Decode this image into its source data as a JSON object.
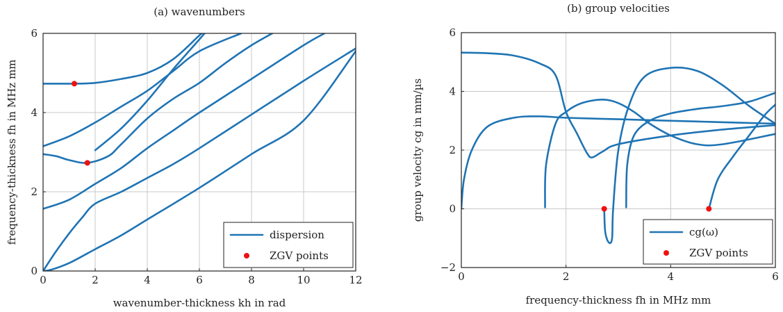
{
  "chart_data": [
    {
      "type": "line",
      "title": "(a) wavenumbers",
      "xlabel": "wavenumber-thickness kh in rad",
      "ylabel": "frequency-thickness fh in MHz mm",
      "xlim": [
        0,
        12
      ],
      "ylim": [
        0,
        6
      ],
      "xticks": [
        "0",
        "2",
        "4",
        "6",
        "8",
        "10",
        "12"
      ],
      "yticks": [
        "0",
        "2",
        "4",
        "6"
      ],
      "grid": true,
      "legend": {
        "placement": "bottom-right",
        "entries": [
          "dispersion",
          "ZGV points"
        ]
      },
      "series": [
        {
          "name": "dispersion",
          "kind": "line",
          "curves": [
            [
              [
                0,
                0
              ],
              [
                0.3,
                0.03
              ],
              [
                1,
                0.2
              ],
              [
                2,
                0.55
              ],
              [
                3,
                0.9
              ],
              [
                4,
                1.3
              ],
              [
                6,
                2.1
              ],
              [
                8,
                2.95
              ],
              [
                10,
                3.8
              ],
              [
                12,
                5.55
              ]
            ],
            [
              [
                0,
                0
              ],
              [
                0.5,
                0.5
              ],
              [
                1,
                0.95
              ],
              [
                1.5,
                1.35
              ],
              [
                2,
                1.7
              ],
              [
                3,
                2.0
              ],
              [
                4,
                2.35
              ],
              [
                5,
                2.7
              ],
              [
                6,
                3.1
              ],
              [
                8,
                3.95
              ],
              [
                10,
                4.8
              ],
              [
                12,
                5.62
              ]
            ],
            [
              [
                0,
                1.57
              ],
              [
                1,
                1.8
              ],
              [
                2,
                2.2
              ],
              [
                3,
                2.6
              ],
              [
                4,
                3.1
              ],
              [
                5,
                3.55
              ],
              [
                6,
                4.0
              ],
              [
                8,
                4.85
              ],
              [
                10,
                5.7
              ],
              [
                10.8,
                6.0
              ]
            ],
            [
              [
                0,
                2.95
              ],
              [
                0.5,
                2.9
              ],
              [
                1,
                2.8
              ],
              [
                1.7,
                2.73
              ],
              [
                2.5,
                2.9
              ],
              [
                3,
                3.2
              ],
              [
                4,
                3.85
              ],
              [
                5,
                4.35
              ],
              [
                6,
                4.75
              ],
              [
                7,
                5.25
              ],
              [
                8,
                5.7
              ],
              [
                8.8,
                6.0
              ]
            ],
            [
              [
                0,
                3.15
              ],
              [
                1,
                3.4
              ],
              [
                2,
                3.75
              ],
              [
                3,
                4.15
              ],
              [
                4,
                4.55
              ],
              [
                5,
                5.05
              ],
              [
                6,
                5.55
              ],
              [
                7.6,
                6.0
              ]
            ],
            [
              [
                0,
                4.73
              ],
              [
                1,
                4.73
              ],
              [
                1.2,
                4.73
              ],
              [
                2,
                4.75
              ],
              [
                3,
                4.85
              ],
              [
                4,
                5.0
              ],
              [
                5,
                5.35
              ],
              [
                6,
                5.95
              ],
              [
                6.1,
                6.0
              ]
            ],
            [
              [
                2.0,
                3.05
              ],
              [
                3,
                3.6
              ],
              [
                4,
                4.3
              ],
              [
                5,
                5.1
              ],
              [
                6,
                5.85
              ],
              [
                6.2,
                6.0
              ]
            ]
          ]
        },
        {
          "name": "ZGV points",
          "kind": "points",
          "points": [
            [
              1.2,
              4.73
            ],
            [
              1.7,
              2.73
            ]
          ]
        }
      ]
    },
    {
      "type": "line",
      "title": "(b) group velocities",
      "xlabel": "frequency-thickness fh in MHz mm",
      "ylabel": "group velocity c_g in mm/µs",
      "xlim": [
        0,
        6
      ],
      "ylim": [
        -2,
        6
      ],
      "xticks": [
        "0",
        "2",
        "4",
        "6"
      ],
      "yticks": [
        "−2",
        "0",
        "2",
        "4",
        "6"
      ],
      "grid": true,
      "legend": {
        "placement": "bottom-right",
        "entries": [
          "c_g(ω)",
          "ZGV points"
        ]
      },
      "series": [
        {
          "name": "c_g(ω)",
          "kind": "line",
          "curves": [
            [
              [
                0,
                5.32
              ],
              [
                0.5,
                5.3
              ],
              [
                1,
                5.22
              ],
              [
                1.5,
                4.95
              ],
              [
                1.8,
                4.55
              ],
              [
                2.0,
                3.3
              ],
              [
                2.2,
                2.6
              ],
              [
                2.4,
                1.9
              ],
              [
                2.5,
                1.75
              ],
              [
                2.7,
                1.95
              ],
              [
                3,
                2.2
              ],
              [
                4,
                2.5
              ],
              [
                5,
                2.7
              ],
              [
                6,
                2.85
              ]
            ],
            [
              [
                0,
                0
              ],
              [
                0.05,
                1.0
              ],
              [
                0.2,
                2.0
              ],
              [
                0.5,
                2.8
              ],
              [
                1,
                3.1
              ],
              [
                1.5,
                3.15
              ],
              [
                2,
                3.1
              ],
              [
                3,
                3.05
              ],
              [
                4,
                3.0
              ],
              [
                5,
                2.95
              ],
              [
                6,
                2.9
              ]
            ],
            [
              [
                1.6,
                0.05
              ],
              [
                1.62,
                1.5
              ],
              [
                1.8,
                2.9
              ],
              [
                2,
                3.3
              ],
              [
                2.3,
                3.6
              ],
              [
                2.7,
                3.72
              ],
              [
                3,
                3.6
              ],
              [
                3.3,
                3.3
              ],
              [
                3.6,
                2.9
              ],
              [
                4,
                2.5
              ],
              [
                4.5,
                2.2
              ],
              [
                5,
                2.2
              ],
              [
                6,
                2.55
              ]
            ],
            [
              [
                2.73,
                0
              ],
              [
                2.75,
                -0.8
              ],
              [
                2.82,
                -1.15
              ],
              [
                2.88,
                -1.0
              ],
              [
                2.9,
                0
              ],
              [
                3.0,
                2.0
              ],
              [
                3.2,
                3.5
              ],
              [
                3.5,
                4.5
              ],
              [
                4,
                4.8
              ],
              [
                4.5,
                4.7
              ],
              [
                5,
                4.2
              ],
              [
                5.5,
                3.5
              ],
              [
                6,
                2.9
              ]
            ],
            [
              [
                3.15,
                0.05
              ],
              [
                3.17,
                1.5
              ],
              [
                3.3,
                2.5
              ],
              [
                3.6,
                3.0
              ],
              [
                4,
                3.25
              ],
              [
                4.5,
                3.4
              ],
              [
                5,
                3.5
              ],
              [
                5.5,
                3.65
              ],
              [
                6,
                3.95
              ]
            ],
            [
              [
                4.73,
                0
              ],
              [
                4.9,
                1.0
              ],
              [
                5.2,
                1.8
              ],
              [
                5.5,
                2.5
              ],
              [
                5.8,
                3.2
              ],
              [
                6,
                3.55
              ]
            ]
          ]
        },
        {
          "name": "ZGV points",
          "kind": "points",
          "points": [
            [
              2.73,
              0
            ],
            [
              4.73,
              0
            ]
          ]
        }
      ]
    }
  ],
  "labels": {
    "a_title": "(a) wavenumbers",
    "a_xlabel": "wavenumber-thickness kh in rad",
    "a_ylabel": "frequency-thickness fh in MHz mm",
    "a_leg1": "dispersion",
    "a_leg2": "ZGV points",
    "b_title": "(b) group velocities",
    "b_xlabel": "frequency-thickness fh in MHz mm",
    "b_ylabel": "group velocity cg in mm/µs",
    "b_leg1": "cg(ω)",
    "b_leg2": "ZGV points"
  },
  "colors": {
    "line": "#1f74b4",
    "zgv": "#ee1111",
    "grid": "#c8c8c8"
  }
}
